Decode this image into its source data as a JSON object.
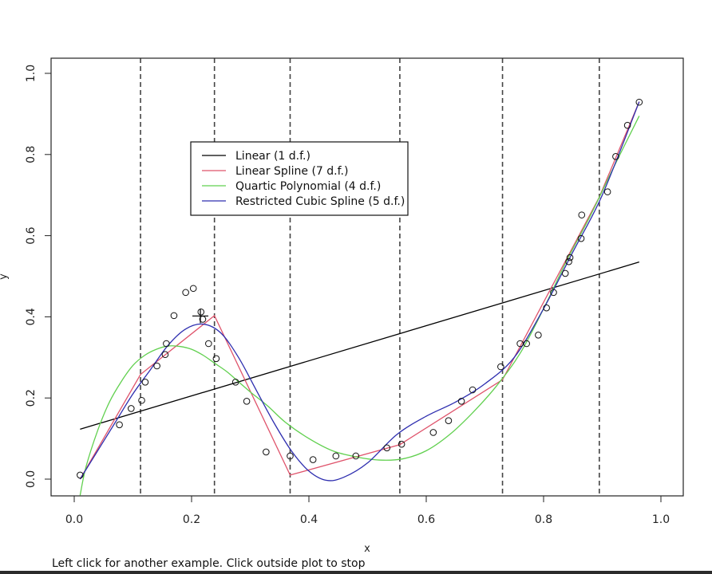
{
  "status": {
    "message": "Left click for another example.  Click outside plot to stop"
  },
  "chart_data": {
    "type": "scatter",
    "title": "",
    "xlabel": "x",
    "ylabel": "y",
    "xlim": [
      0.0,
      1.0
    ],
    "ylim": [
      0.0,
      1.0
    ],
    "x_ticks": [
      "0.0",
      "0.2",
      "0.4",
      "0.6",
      "0.8",
      "1.0"
    ],
    "y_ticks": [
      "0.0",
      "0.2",
      "0.4",
      "0.6",
      "0.8",
      "1.0"
    ],
    "grid": false,
    "legend_position": "top-left",
    "knots": [
      0.113,
      0.239,
      0.368,
      0.555,
      0.73,
      0.895
    ],
    "cursor": {
      "x": 0.215,
      "y": 0.402
    },
    "points": [
      {
        "x": 0.01,
        "y": 0.01
      },
      {
        "x": 0.077,
        "y": 0.134
      },
      {
        "x": 0.097,
        "y": 0.174
      },
      {
        "x": 0.115,
        "y": 0.194
      },
      {
        "x": 0.121,
        "y": 0.239
      },
      {
        "x": 0.141,
        "y": 0.279
      },
      {
        "x": 0.155,
        "y": 0.307
      },
      {
        "x": 0.157,
        "y": 0.334
      },
      {
        "x": 0.17,
        "y": 0.403
      },
      {
        "x": 0.19,
        "y": 0.46
      },
      {
        "x": 0.203,
        "y": 0.47
      },
      {
        "x": 0.216,
        "y": 0.412
      },
      {
        "x": 0.219,
        "y": 0.394
      },
      {
        "x": 0.229,
        "y": 0.334
      },
      {
        "x": 0.242,
        "y": 0.297
      },
      {
        "x": 0.275,
        "y": 0.239
      },
      {
        "x": 0.294,
        "y": 0.192
      },
      {
        "x": 0.327,
        "y": 0.067
      },
      {
        "x": 0.368,
        "y": 0.057
      },
      {
        "x": 0.407,
        "y": 0.048
      },
      {
        "x": 0.446,
        "y": 0.057
      },
      {
        "x": 0.48,
        "y": 0.057
      },
      {
        "x": 0.533,
        "y": 0.077
      },
      {
        "x": 0.558,
        "y": 0.086
      },
      {
        "x": 0.612,
        "y": 0.115
      },
      {
        "x": 0.638,
        "y": 0.144
      },
      {
        "x": 0.66,
        "y": 0.192
      },
      {
        "x": 0.679,
        "y": 0.22
      },
      {
        "x": 0.727,
        "y": 0.277
      },
      {
        "x": 0.76,
        "y": 0.334
      },
      {
        "x": 0.771,
        "y": 0.334
      },
      {
        "x": 0.791,
        "y": 0.355
      },
      {
        "x": 0.805,
        "y": 0.422
      },
      {
        "x": 0.817,
        "y": 0.46
      },
      {
        "x": 0.837,
        "y": 0.507
      },
      {
        "x": 0.843,
        "y": 0.536
      },
      {
        "x": 0.845,
        "y": 0.546
      },
      {
        "x": 0.864,
        "y": 0.593
      },
      {
        "x": 0.865,
        "y": 0.651
      },
      {
        "x": 0.909,
        "y": 0.708
      },
      {
        "x": 0.923,
        "y": 0.795
      },
      {
        "x": 0.943,
        "y": 0.872
      },
      {
        "x": 0.963,
        "y": 0.929
      }
    ],
    "series": [
      {
        "name": "Linear (1 d.f.)",
        "color": "#000000",
        "x": [
          0.01,
          0.963
        ],
        "y": [
          0.123,
          0.535
        ]
      },
      {
        "name": "Linear Spline (7 d.f.)",
        "color": "#df536b",
        "x": [
          0.01,
          0.113,
          0.239,
          0.368,
          0.555,
          0.73,
          0.895,
          0.963
        ],
        "y": [
          0.0,
          0.258,
          0.403,
          0.01,
          0.085,
          0.245,
          0.695,
          0.93
        ]
      },
      {
        "name": "Quartic Polynomial (4 d.f.)",
        "color": "#61d04f",
        "x": [
          0.01,
          0.02,
          0.04,
          0.06,
          0.08,
          0.1,
          0.12,
          0.14,
          0.16,
          0.18,
          0.2,
          0.22,
          0.24,
          0.26,
          0.28,
          0.3,
          0.33,
          0.36,
          0.4,
          0.44,
          0.48,
          0.52,
          0.56,
          0.6,
          0.64,
          0.68,
          0.72,
          0.76,
          0.8,
          0.84,
          0.88,
          0.92,
          0.963
        ],
        "y": [
          -0.04,
          0.03,
          0.12,
          0.19,
          0.24,
          0.28,
          0.305,
          0.32,
          0.328,
          0.327,
          0.32,
          0.305,
          0.285,
          0.265,
          0.24,
          0.215,
          0.18,
          0.14,
          0.1,
          0.07,
          0.055,
          0.047,
          0.05,
          0.07,
          0.11,
          0.165,
          0.23,
          0.31,
          0.42,
          0.54,
          0.65,
          0.77,
          0.895
        ]
      },
      {
        "name": "Restricted Cubic Spline (5 d.f.)",
        "color": "#2e2eaf",
        "x": [
          0.01,
          0.04,
          0.07,
          0.1,
          0.13,
          0.16,
          0.19,
          0.22,
          0.25,
          0.28,
          0.31,
          0.34,
          0.37,
          0.4,
          0.43,
          0.46,
          0.5,
          0.55,
          0.6,
          0.65,
          0.7,
          0.75,
          0.8,
          0.85,
          0.9,
          0.963
        ],
        "y": [
          0.0,
          0.07,
          0.14,
          0.21,
          0.27,
          0.33,
          0.37,
          0.382,
          0.36,
          0.3,
          0.22,
          0.14,
          0.07,
          0.02,
          -0.003,
          0.005,
          0.04,
          0.11,
          0.155,
          0.19,
          0.235,
          0.3,
          0.42,
          0.56,
          0.7,
          0.93
        ]
      }
    ]
  }
}
